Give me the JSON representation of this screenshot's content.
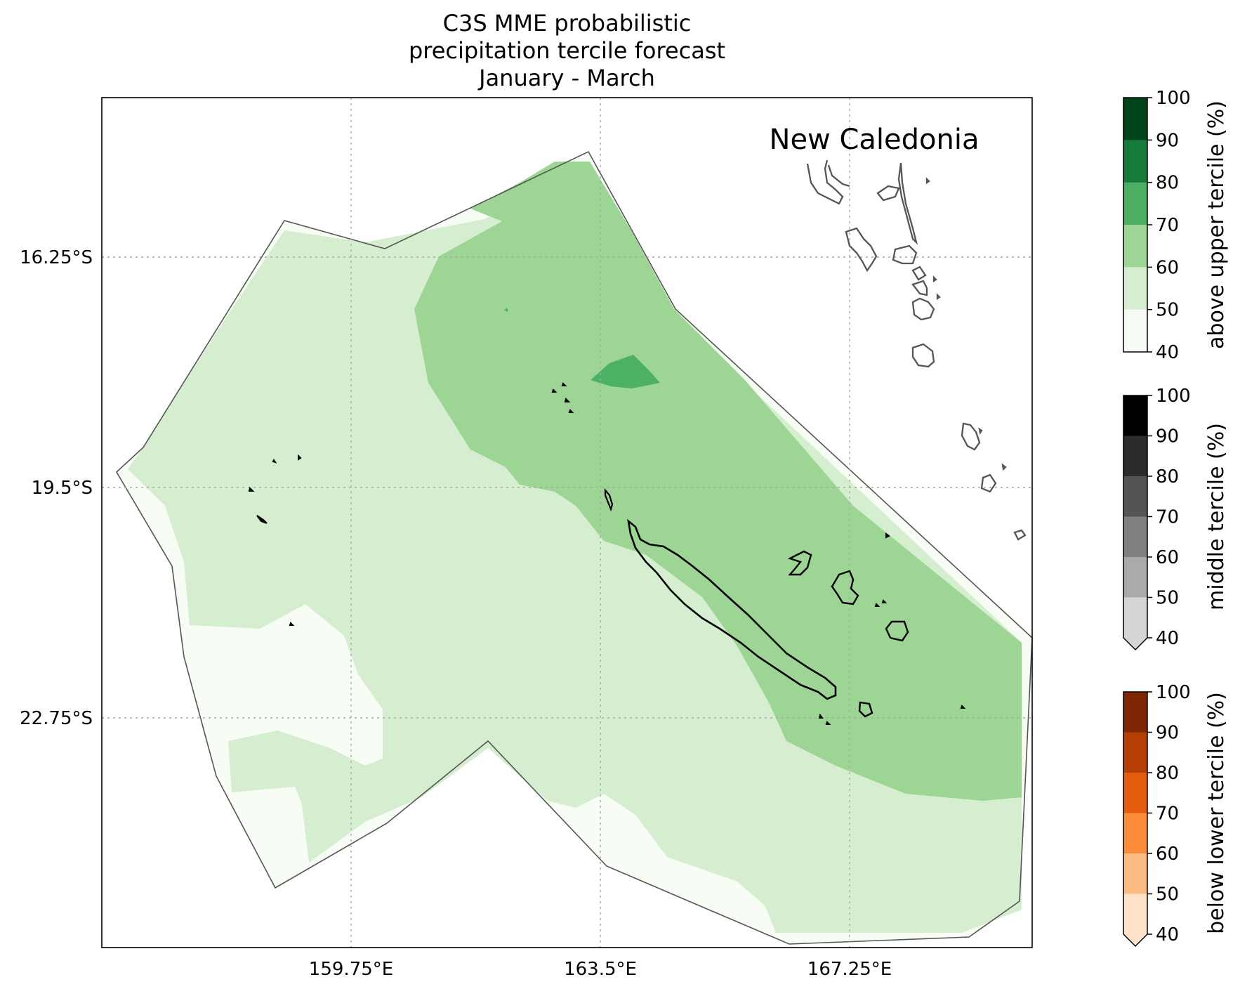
{
  "title": {
    "line1": "C3S MME probabilistic",
    "line2": "precipitation tercile forecast",
    "line3": "January - March"
  },
  "map": {
    "region_label": "New Caledonia",
    "lon_ticks": [
      "159.75°E",
      "163.5°E",
      "167.25°E"
    ],
    "lat_ticks": [
      "16.25°S",
      "19.5°S",
      "22.75°S"
    ],
    "colors": {
      "green_40_50": "#f7fcf5",
      "green_50_60": "#d4eecf",
      "green_60_70": "#9cd594",
      "green_70_80": "#4db163",
      "coast_outer": "#555555",
      "land": "#000000",
      "grid": "#aaaaaa"
    }
  },
  "colorbars": [
    {
      "name": "above-upper-tercile",
      "label": "above upper tercile (%)",
      "ticks": [
        "100",
        "90",
        "80",
        "70",
        "60",
        "50",
        "40"
      ],
      "colors": [
        "#00441b",
        "#167c3c",
        "#4bae60",
        "#9dd596",
        "#d4eecf",
        "#f6fcf4"
      ],
      "extend_min": false
    },
    {
      "name": "middle-tercile",
      "label": "middle tercile (%)",
      "ticks": [
        "100",
        "90",
        "80",
        "70",
        "60",
        "50",
        "40"
      ],
      "colors": [
        "#000000",
        "#2b2b2b",
        "#545454",
        "#808080",
        "#aaaaaa",
        "#d5d5d5"
      ],
      "extend_min": true
    },
    {
      "name": "below-lower-tercile",
      "label": "below lower tercile (%)",
      "ticks": [
        "100",
        "90",
        "80",
        "70",
        "60",
        "50",
        "40"
      ],
      "colors": [
        "#7f2704",
        "#b43e04",
        "#e55d0c",
        "#fd8c3b",
        "#fdbb84",
        "#fee3c9"
      ],
      "extend_min": true
    }
  ]
}
